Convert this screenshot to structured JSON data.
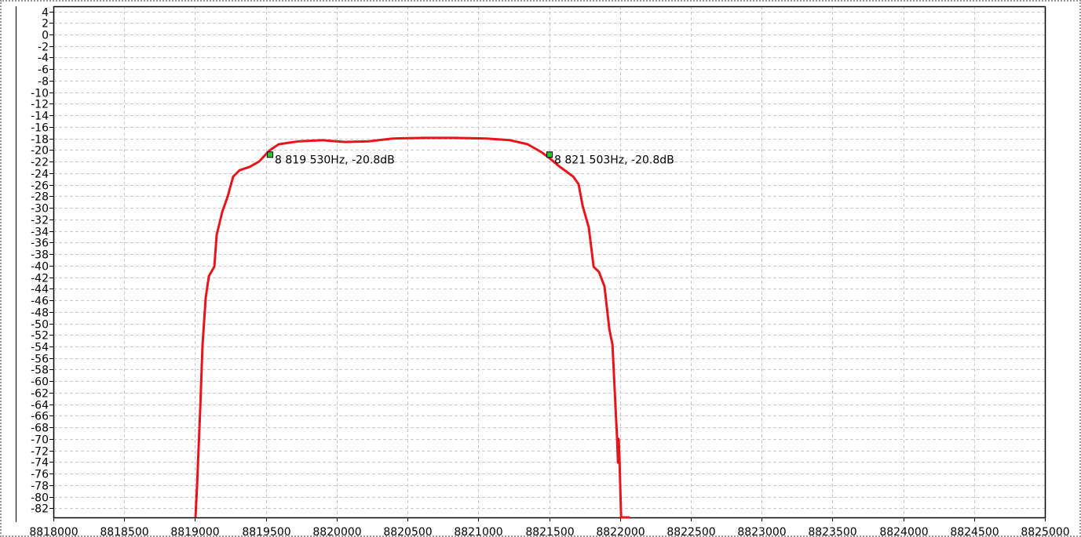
{
  "chart_data": {
    "type": "line",
    "title": "",
    "xlabel": "",
    "ylabel": "",
    "xlim": [
      8818000,
      8825000
    ],
    "ylim": [
      -83.6,
      5
    ],
    "x_ticks": [
      8818000,
      8818500,
      8819000,
      8819500,
      8820000,
      8820500,
      8821000,
      8821500,
      8822000,
      8822500,
      8823000,
      8823500,
      8824000,
      8824500,
      8825000
    ],
    "y_ticks": [
      4,
      2,
      0,
      -2,
      -4,
      -6,
      -8,
      -10,
      -12,
      -14,
      -16,
      -18,
      -20,
      -22,
      -24,
      -26,
      -28,
      -30,
      -32,
      -34,
      -36,
      -38,
      -40,
      -42,
      -44,
      -46,
      -48,
      -50,
      -52,
      -54,
      -56,
      -58,
      -60,
      -62,
      -64,
      -66,
      -68,
      -70,
      -72,
      -74,
      -76,
      -78,
      -80,
      -82
    ],
    "grid": true,
    "colors": {
      "series": "#e8141c",
      "marker": "#22cc22",
      "grid": "#c8c8c8",
      "axis": "#000000"
    },
    "series": [
      {
        "x": [
          8819003,
          8819014,
          8819037,
          8819053,
          8819075,
          8819098,
          8819136,
          8819153,
          8819192,
          8819231,
          8819269,
          8819314,
          8819386,
          8819452,
          8819524,
          8819591,
          8819729,
          8819896,
          8820062,
          8820228,
          8820395,
          8820616,
          8820838,
          8821060,
          8821226,
          8821348,
          8821448,
          8821503,
          8821570,
          8821670,
          8821708,
          8821736,
          8821780,
          8821814,
          8821852,
          8821891,
          8821925,
          8821947,
          8821969,
          8821980,
          8821986,
          8821991,
          8821997,
          8822008,
          8822069
        ],
        "y": [
          -83.6,
          -78.2,
          -64.6,
          -53.7,
          -45.6,
          -41.8,
          -40.2,
          -34.7,
          -30.7,
          -28.0,
          -24.6,
          -23.5,
          -22.9,
          -22.0,
          -20.1,
          -19.0,
          -18.5,
          -18.3,
          -18.6,
          -18.5,
          -18.0,
          -17.9,
          -17.9,
          -18.0,
          -18.3,
          -19.0,
          -20.4,
          -21.4,
          -22.8,
          -24.6,
          -25.9,
          -29.6,
          -33.4,
          -40.2,
          -41.1,
          -43.6,
          -51.0,
          -53.7,
          -64.6,
          -70.0,
          -74.1,
          -70.0,
          -74.1,
          -83.6,
          -83.6
        ]
      }
    ],
    "markers": [
      {
        "x": 8819530,
        "y": -20.8,
        "label": "8 819 530Hz, -20.8dB"
      },
      {
        "x": 8821503,
        "y": -20.8,
        "label": "8 821 503Hz, -20.8dB"
      }
    ]
  }
}
